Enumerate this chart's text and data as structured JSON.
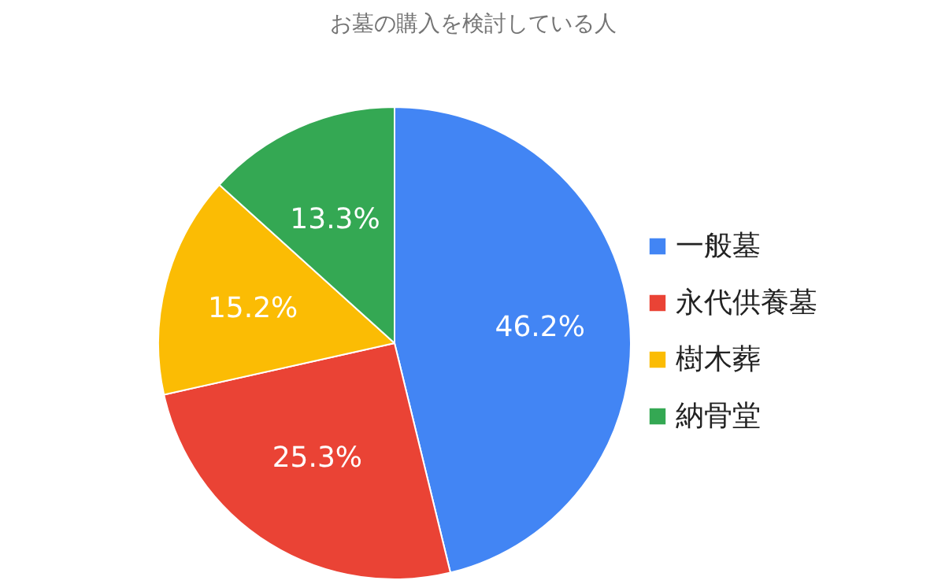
{
  "chart_data": {
    "type": "pie",
    "title": "お墓の購入を検討している人",
    "categories": [
      "一般墓",
      "永代供養墓",
      "樹木葬",
      "納骨堂"
    ],
    "values": [
      46.2,
      25.3,
      15.2,
      13.3
    ],
    "colors": [
      "#4285f4",
      "#ea4335",
      "#fbbc04",
      "#34a853"
    ],
    "value_labels": [
      "46.2%",
      "25.3%",
      "15.2%",
      "13.3%"
    ],
    "legend": "right"
  }
}
